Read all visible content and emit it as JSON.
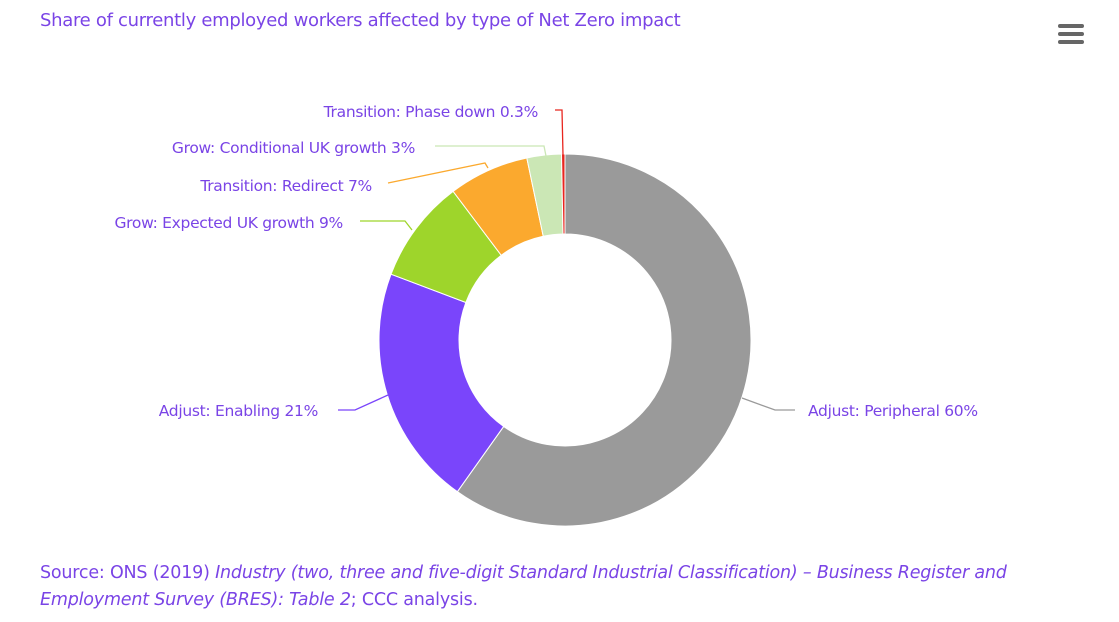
{
  "chart_data": {
    "type": "pie",
    "variant": "donut",
    "title": "Share of currently employed workers affected by type of Net Zero impact",
    "start_angle": "top, clockwise",
    "slices": [
      {
        "label": "Adjust: Peripheral",
        "value": 60,
        "display": "Adjust: Peripheral 60%",
        "color": "#9a9a9a"
      },
      {
        "label": "Adjust: Enabling",
        "value": 21,
        "display": "Adjust: Enabling 21%",
        "color": "#7a45fb"
      },
      {
        "label": "Grow: Expected UK growth",
        "value": 9,
        "display": "Grow: Expected UK growth 9%",
        "color": "#9ed52b"
      },
      {
        "label": "Transition: Redirect",
        "value": 7,
        "display": "Transition: Redirect 7%",
        "color": "#fba92e"
      },
      {
        "label": "Grow: Conditional UK growth",
        "value": 3,
        "display": "Grow: Conditional UK growth 3%",
        "color": "#cbe7b5"
      },
      {
        "label": "Transition: Phase down",
        "value": 0.3,
        "display": "Transition: Phase down 0.3%",
        "color": "#e8261f"
      }
    ]
  },
  "source": {
    "prefix": "Source: ONS (2019) ",
    "italic": "Industry (two, three and five-digit Standard Industrial Classification) – Business Register and Employment Survey (BRES): Table 2",
    "suffix": "; CCC analysis."
  },
  "menu_icon": "hamburger-menu-icon",
  "text_color": "#7a44e6"
}
